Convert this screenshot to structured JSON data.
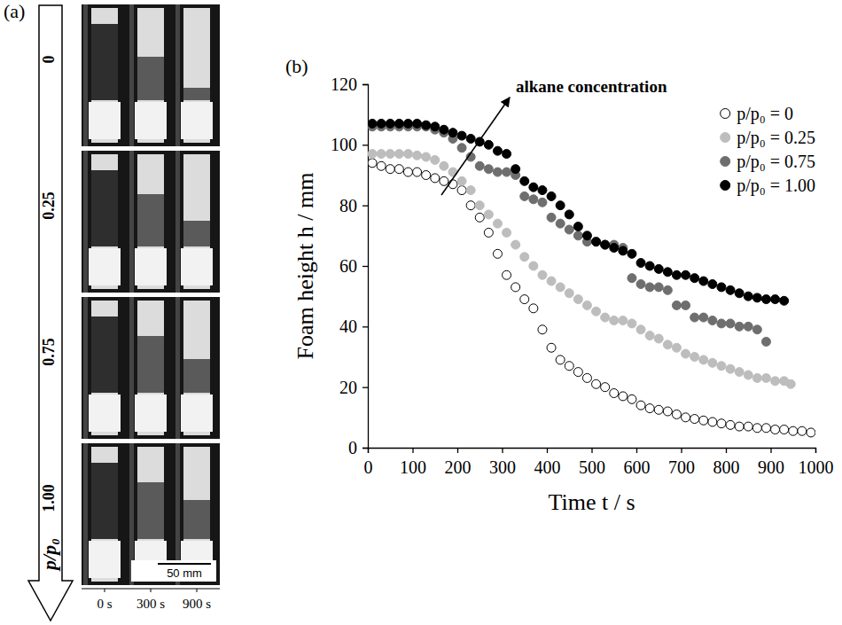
{
  "panel_a": {
    "letter": "(a)",
    "axis_label": "p/p₀",
    "rows": [
      "0",
      "0.25",
      "0.75",
      "1.00"
    ],
    "columns": [
      "0 s",
      "300 s",
      "900 s"
    ],
    "scale_bar": "50 mm"
  },
  "chart_data": {
    "type": "scatter",
    "panel_label": "(b)",
    "x_label": "Time t / s",
    "y_label": "Foam height h / mm",
    "annotations": [
      {
        "text": "alkane concentration"
      }
    ],
    "xlim": [
      0,
      1000
    ],
    "xticks": [
      0,
      100,
      200,
      300,
      400,
      500,
      600,
      700,
      800,
      900,
      1000
    ],
    "ylim": [
      0,
      120
    ],
    "yticks": [
      0,
      20,
      40,
      60,
      80,
      100,
      120
    ],
    "legend": "upper right",
    "series": [
      {
        "name": "p/p₀ = 0",
        "color": "#000000",
        "marker": "circle-open",
        "x": [
          10,
          30,
          50,
          70,
          90,
          110,
          130,
          150,
          170,
          190,
          210,
          230,
          250,
          270,
          290,
          310,
          330,
          350,
          370,
          390,
          410,
          430,
          450,
          470,
          490,
          510,
          530,
          550,
          570,
          590,
          610,
          630,
          650,
          670,
          690,
          710,
          730,
          750,
          770,
          790,
          810,
          830,
          850,
          870,
          890,
          910,
          930,
          950,
          970,
          990
        ],
        "values": [
          94,
          93,
          92,
          92,
          91,
          91,
          90,
          89,
          88,
          87,
          85,
          80,
          76,
          71,
          64,
          57,
          53,
          49,
          46,
          39,
          33,
          29,
          27,
          25,
          23,
          21,
          20,
          18,
          17,
          16,
          14,
          13,
          12.5,
          12,
          11,
          10,
          9.5,
          9,
          8.5,
          8,
          7.5,
          7,
          7,
          6.5,
          6.5,
          6,
          6,
          5.5,
          5.5,
          5
        ]
      },
      {
        "name": "p/p₀ = 0.25",
        "color": "#bdbdbd",
        "marker": "circle",
        "x": [
          10,
          30,
          50,
          70,
          90,
          110,
          130,
          150,
          170,
          190,
          210,
          230,
          250,
          270,
          290,
          310,
          330,
          350,
          370,
          390,
          410,
          430,
          450,
          470,
          490,
          510,
          530,
          550,
          570,
          590,
          610,
          630,
          650,
          670,
          690,
          710,
          730,
          750,
          770,
          790,
          810,
          830,
          850,
          870,
          890,
          910,
          930,
          945
        ],
        "values": [
          97,
          97,
          97,
          97,
          97,
          96.5,
          96,
          95,
          93,
          91,
          88,
          85,
          80,
          77,
          74,
          71,
          67,
          63,
          60,
          57,
          55,
          53,
          51,
          49,
          47,
          45,
          43,
          42,
          42,
          41,
          39,
          37,
          36,
          34,
          33,
          31,
          30,
          29,
          28,
          27,
          26,
          25,
          24,
          23,
          23,
          22,
          22,
          21
        ]
      },
      {
        "name": "p/p₀ = 0.75",
        "color": "#6e6e6e",
        "marker": "circle",
        "x": [
          10,
          30,
          50,
          70,
          90,
          110,
          130,
          150,
          170,
          190,
          210,
          230,
          250,
          270,
          290,
          310,
          330,
          350,
          370,
          390,
          410,
          430,
          450,
          470,
          490,
          510,
          530,
          550,
          570,
          590,
          610,
          630,
          650,
          670,
          690,
          710,
          730,
          750,
          770,
          790,
          810,
          830,
          850,
          870,
          890
        ],
        "values": [
          106,
          106,
          106,
          106,
          106,
          106,
          106,
          105,
          104,
          102,
          99,
          96,
          93,
          92,
          91,
          91,
          90,
          83,
          82,
          81,
          76,
          74,
          72,
          70,
          68,
          68,
          67,
          67,
          66,
          56,
          54,
          53,
          53,
          52,
          47,
          47,
          43,
          43,
          42,
          41,
          41,
          40,
          40,
          39,
          35
        ]
      },
      {
        "name": "p/p₀ = 1.00",
        "color": "#000000",
        "marker": "circle",
        "x": [
          10,
          30,
          50,
          70,
          90,
          110,
          130,
          150,
          170,
          190,
          210,
          230,
          250,
          270,
          290,
          310,
          330,
          350,
          370,
          390,
          410,
          430,
          450,
          470,
          490,
          510,
          530,
          550,
          570,
          590,
          610,
          630,
          650,
          670,
          690,
          710,
          730,
          750,
          770,
          790,
          810,
          830,
          850,
          870,
          890,
          910,
          930
        ],
        "values": [
          107,
          107,
          107,
          107,
          107,
          107,
          106.5,
          106,
          105,
          104,
          103,
          102,
          101,
          100,
          98,
          97,
          92,
          88,
          86,
          85,
          83,
          80,
          77,
          73,
          70,
          68,
          67,
          66,
          65,
          64,
          61,
          60,
          59,
          58,
          57,
          57,
          56,
          55,
          54,
          53,
          52,
          51,
          50,
          49.5,
          49,
          49,
          48.5
        ]
      }
    ]
  }
}
